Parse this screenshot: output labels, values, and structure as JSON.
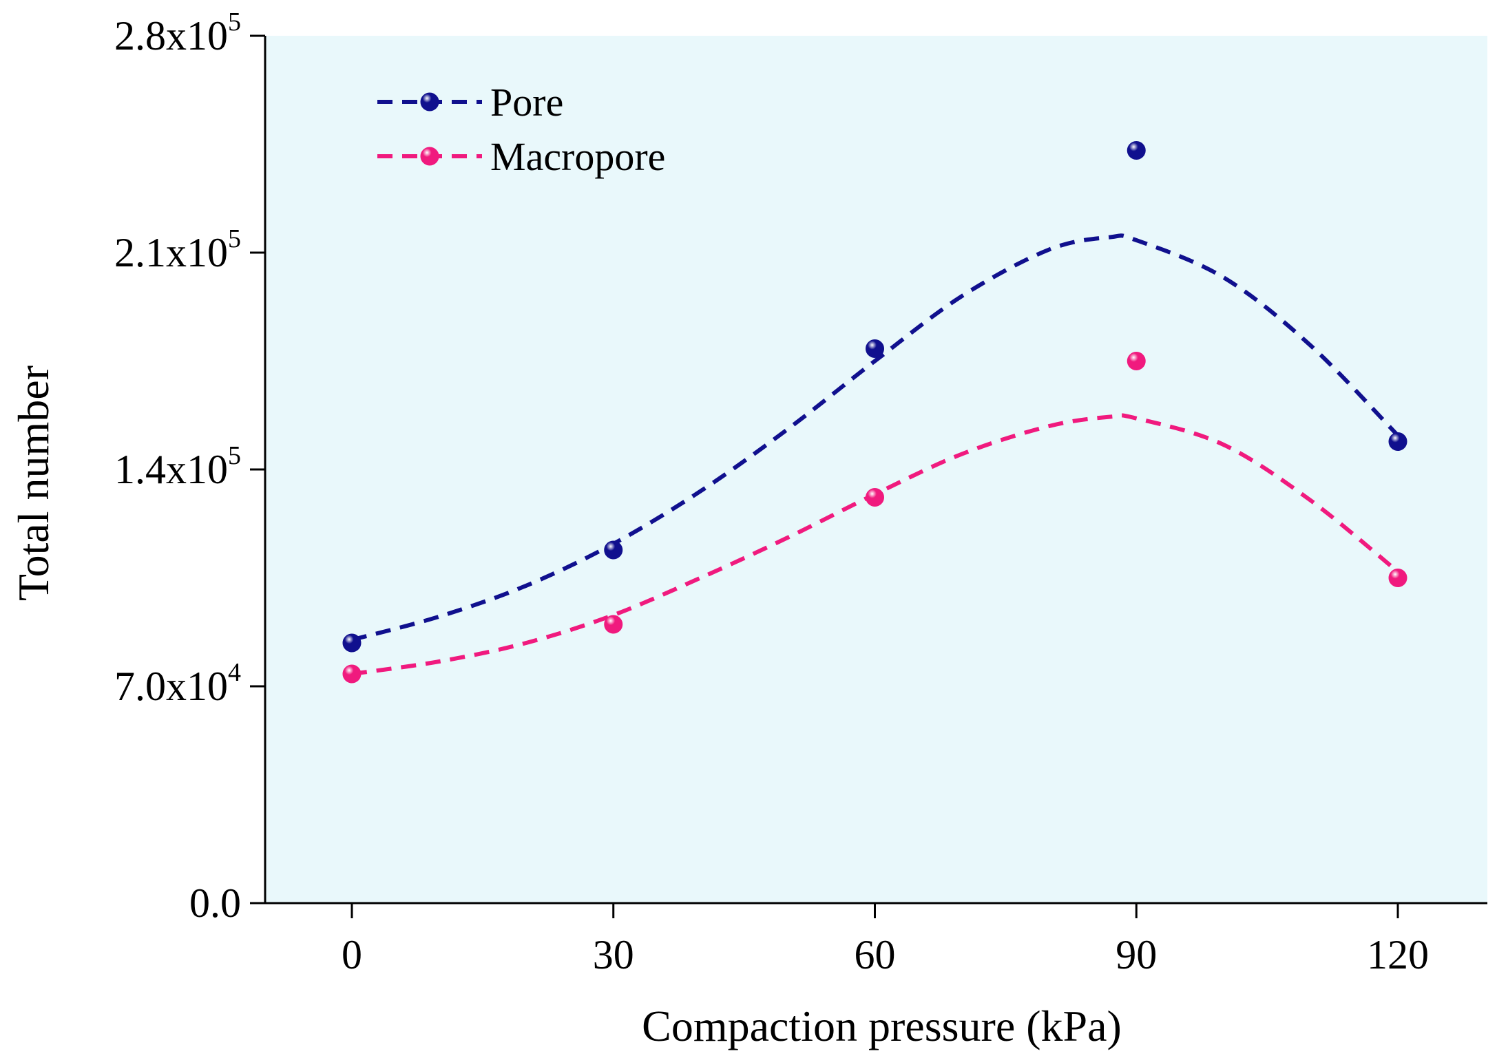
{
  "colors": {
    "plot_background": "#e9f8fb",
    "pore": "#10108e",
    "macropore": "#f01a7e",
    "axis": "#000000"
  },
  "chart_data": {
    "type": "scatter",
    "xlabel": "Compaction pressure (kPa)",
    "ylabel": "Total number",
    "xlim": [
      -10,
      130
    ],
    "ylim": [
      0,
      280000
    ],
    "x_ticks": [
      {
        "value": 0,
        "label": "0"
      },
      {
        "value": 30,
        "label": "30"
      },
      {
        "value": 60,
        "label": "60"
      },
      {
        "value": 90,
        "label": "90"
      },
      {
        "value": 120,
        "label": "120"
      }
    ],
    "y_ticks": [
      {
        "value": 0,
        "mantissa": "0.0",
        "base": "",
        "exponent": ""
      },
      {
        "value": 70000,
        "mantissa": "7.0",
        "base": "x10",
        "exponent": "4"
      },
      {
        "value": 140000,
        "mantissa": "1.4",
        "base": "x10",
        "exponent": "5"
      },
      {
        "value": 210000,
        "mantissa": "2.1",
        "base": "x10",
        "exponent": "5"
      },
      {
        "value": 280000,
        "mantissa": "2.8",
        "base": "x10",
        "exponent": "5"
      }
    ],
    "legend_position": "top-left",
    "series": [
      {
        "name": "Pore",
        "color": "#10108e",
        "x": [
          0,
          30,
          60,
          90,
          120
        ],
        "y": [
          84000,
          114000,
          179000,
          243000,
          149000
        ],
        "fit_x": [
          0,
          10,
          20,
          30,
          40,
          50,
          60,
          70,
          80,
          87,
          90,
          100,
          110,
          120
        ],
        "fit_y": [
          85000,
          92500,
          102500,
          116000,
          133000,
          153000,
          175000,
          196000,
          211000,
          215000,
          214000,
          202000,
          180000,
          151000
        ]
      },
      {
        "name": "Macropore",
        "color": "#f01a7e",
        "x": [
          0,
          30,
          60,
          90,
          120
        ],
        "y": [
          74000,
          90000,
          131000,
          175000,
          105000
        ],
        "fit_x": [
          0,
          10,
          20,
          30,
          40,
          50,
          60,
          70,
          80,
          87,
          90,
          100,
          110,
          120
        ],
        "fit_y": [
          74000,
          78000,
          84000,
          93000,
          105000,
          118000,
          132000,
          145000,
          154000,
          157000,
          156500,
          148000,
          130000,
          107000
        ]
      }
    ]
  }
}
